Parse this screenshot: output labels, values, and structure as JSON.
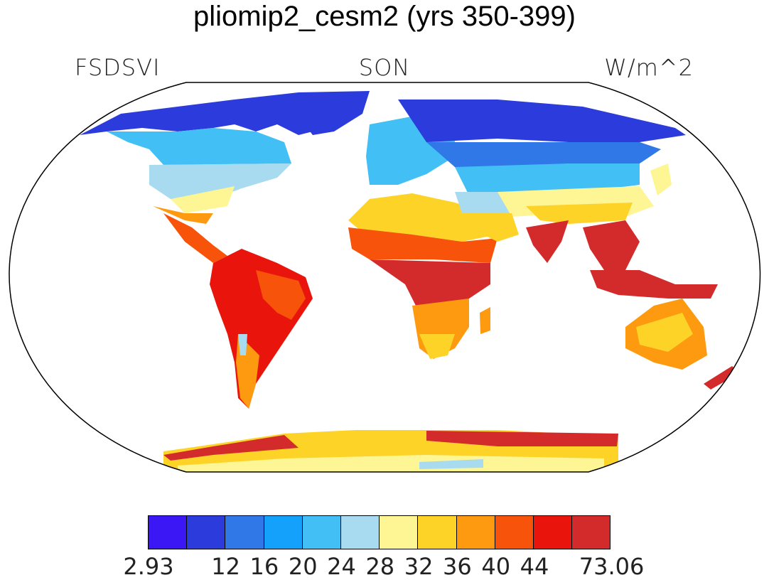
{
  "title": "pliomip2_cesm2 (yrs 350-399)",
  "variable": "FSDSVI",
  "season": "SON",
  "units": "W/m^2",
  "colorbar": {
    "colors": [
      "#3a17f4",
      "#2b3bdc",
      "#3077e8",
      "#13a1fb",
      "#42c0f5",
      "#a8dbf0",
      "#fef594",
      "#fed328",
      "#fd9a10",
      "#f8530a",
      "#e9140b",
      "#d32b2b"
    ],
    "labels": [
      "2.93",
      "12",
      "16",
      "20",
      "24",
      "28",
      "32",
      "36",
      "40",
      "44",
      "73.06"
    ]
  },
  "palette": {
    "ocean": "#ffffff",
    "outline": "#000000"
  }
}
